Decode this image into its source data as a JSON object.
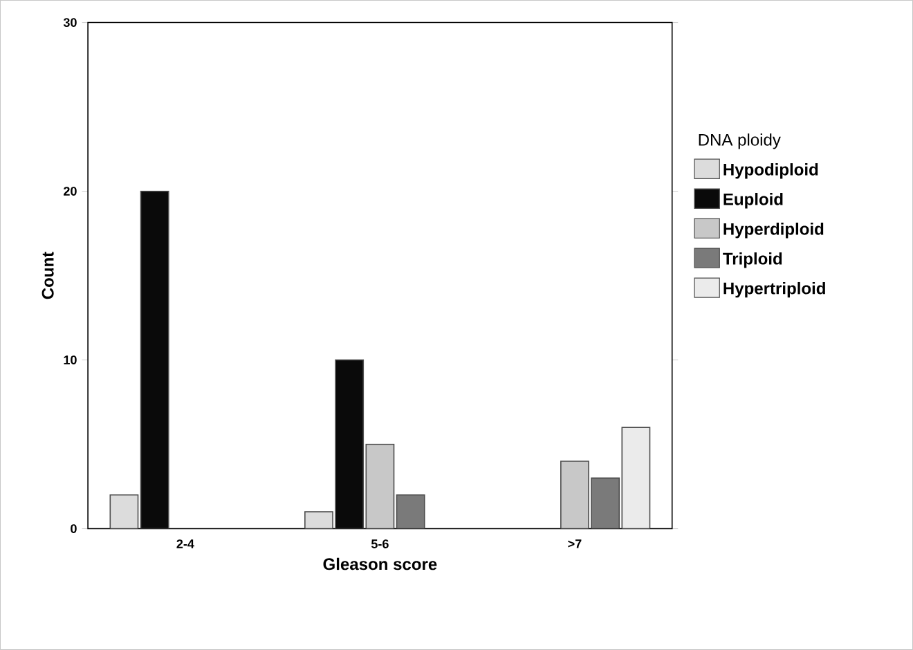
{
  "chart_data": {
    "type": "bar",
    "xlabel": "Gleason score",
    "ylabel": "Count",
    "legend_title": "DNA ploidy",
    "legend": "right",
    "categories": [
      "2-4",
      "5-6",
      ">7"
    ],
    "series": [
      {
        "name": "Hypodiploid",
        "color": "#dcdcdc",
        "values": [
          2,
          1,
          null
        ]
      },
      {
        "name": "Euploid",
        "color": "#0a0a0a",
        "values": [
          20,
          10,
          null
        ]
      },
      {
        "name": "Hyperdiploid",
        "color": "#c8c8c8",
        "values": [
          null,
          5,
          4
        ]
      },
      {
        "name": "Triploid",
        "color": "#7a7a7a",
        "values": [
          null,
          2,
          3
        ]
      },
      {
        "name": "Hypertriploid",
        "color": "#ebebeb",
        "values": [
          null,
          null,
          6
        ]
      }
    ],
    "ylim": [
      0,
      30
    ],
    "yticks": [
      0,
      10,
      20,
      30
    ],
    "grid": false
  }
}
